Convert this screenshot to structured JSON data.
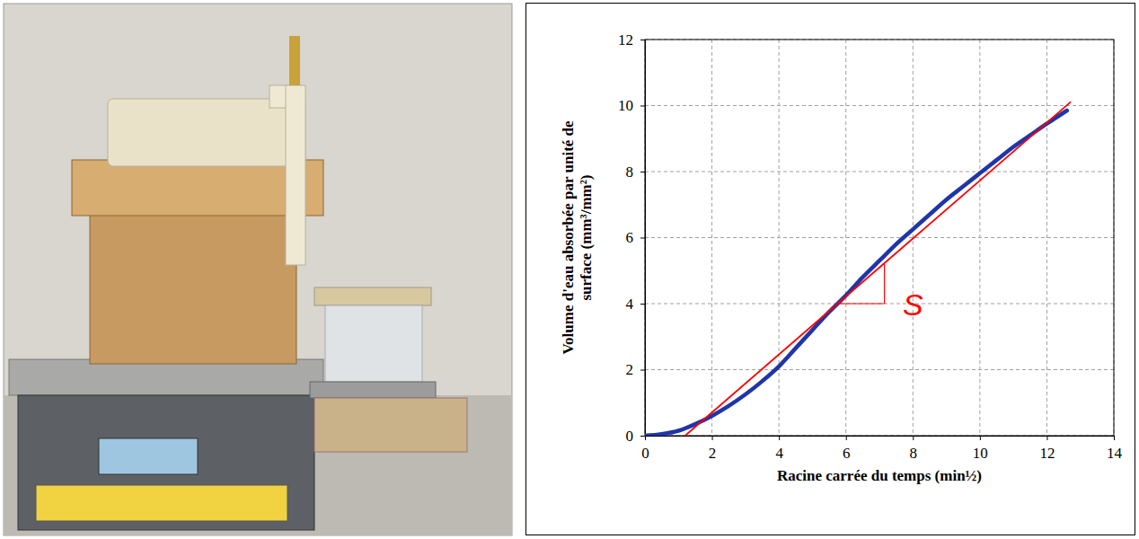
{
  "chart_data": {
    "type": "line",
    "xlabel": "Racine carrée du temps (min½)",
    "ylabel": "Volume d'eau absorbée par unité de surface (mm³/mm²)",
    "xlim": [
      0,
      14
    ],
    "ylim": [
      0,
      12
    ],
    "xticks": [
      0,
      2,
      4,
      6,
      8,
      10,
      12,
      14
    ],
    "yticks": [
      0,
      2,
      4,
      6,
      8,
      10,
      12
    ],
    "grid": true,
    "series": [
      {
        "color": "#1f35a8",
        "x": [
          0,
          0.5,
          1,
          1.5,
          2,
          2.5,
          3,
          3.5,
          4,
          4.5,
          5,
          5.5,
          6,
          6.5,
          7,
          7.5,
          8,
          8.5,
          9,
          9.5,
          10,
          10.5,
          11,
          11.5,
          12,
          12.6
        ],
        "values": [
          0,
          0.05,
          0.15,
          0.35,
          0.6,
          0.9,
          1.25,
          1.65,
          2.1,
          2.65,
          3.2,
          3.75,
          4.25,
          4.8,
          5.3,
          5.8,
          6.25,
          6.7,
          7.15,
          7.55,
          7.95,
          8.35,
          8.75,
          9.1,
          9.45,
          9.85
        ]
      },
      {
        "color": "#ff0000",
        "x": [
          1.2,
          12.7
        ],
        "values": [
          0,
          10.1
        ]
      }
    ],
    "annotations": [
      {
        "text": "S",
        "x": 7.7,
        "y": 3.9,
        "color": "#ff0000",
        "triangle": {
          "x": [
            5.8,
            7.15
          ],
          "y": [
            4.0,
            5.2
          ]
        }
      }
    ]
  }
}
